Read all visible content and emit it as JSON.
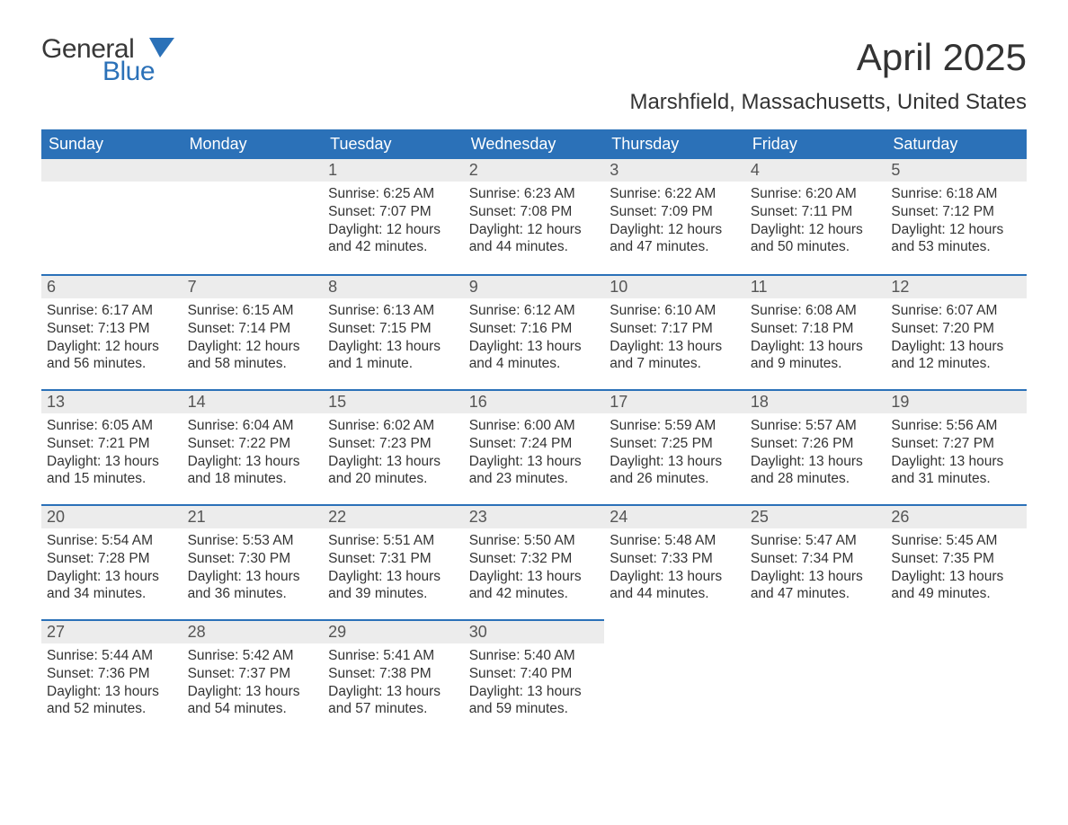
{
  "logo": {
    "top": "General",
    "bottom": "Blue",
    "flag_color": "#2b71b8"
  },
  "title": "April 2025",
  "subtitle": "Marshfield, Massachusetts, United States",
  "colors": {
    "header_bg": "#2b71b8",
    "header_text": "#ffffff",
    "daynum_bg": "#ececec",
    "row_divider": "#2b71b8",
    "body_text": "#333333",
    "page_bg": "#ffffff"
  },
  "weekdays": [
    "Sunday",
    "Monday",
    "Tuesday",
    "Wednesday",
    "Thursday",
    "Friday",
    "Saturday"
  ],
  "weeks": [
    [
      null,
      null,
      {
        "n": "1",
        "sunrise": "6:25 AM",
        "sunset": "7:07 PM",
        "daylight": "12 hours and 42 minutes."
      },
      {
        "n": "2",
        "sunrise": "6:23 AM",
        "sunset": "7:08 PM",
        "daylight": "12 hours and 44 minutes."
      },
      {
        "n": "3",
        "sunrise": "6:22 AM",
        "sunset": "7:09 PM",
        "daylight": "12 hours and 47 minutes."
      },
      {
        "n": "4",
        "sunrise": "6:20 AM",
        "sunset": "7:11 PM",
        "daylight": "12 hours and 50 minutes."
      },
      {
        "n": "5",
        "sunrise": "6:18 AM",
        "sunset": "7:12 PM",
        "daylight": "12 hours and 53 minutes."
      }
    ],
    [
      {
        "n": "6",
        "sunrise": "6:17 AM",
        "sunset": "7:13 PM",
        "daylight": "12 hours and 56 minutes."
      },
      {
        "n": "7",
        "sunrise": "6:15 AM",
        "sunset": "7:14 PM",
        "daylight": "12 hours and 58 minutes."
      },
      {
        "n": "8",
        "sunrise": "6:13 AM",
        "sunset": "7:15 PM",
        "daylight": "13 hours and 1 minute."
      },
      {
        "n": "9",
        "sunrise": "6:12 AM",
        "sunset": "7:16 PM",
        "daylight": "13 hours and 4 minutes."
      },
      {
        "n": "10",
        "sunrise": "6:10 AM",
        "sunset": "7:17 PM",
        "daylight": "13 hours and 7 minutes."
      },
      {
        "n": "11",
        "sunrise": "6:08 AM",
        "sunset": "7:18 PM",
        "daylight": "13 hours and 9 minutes."
      },
      {
        "n": "12",
        "sunrise": "6:07 AM",
        "sunset": "7:20 PM",
        "daylight": "13 hours and 12 minutes."
      }
    ],
    [
      {
        "n": "13",
        "sunrise": "6:05 AM",
        "sunset": "7:21 PM",
        "daylight": "13 hours and 15 minutes."
      },
      {
        "n": "14",
        "sunrise": "6:04 AM",
        "sunset": "7:22 PM",
        "daylight": "13 hours and 18 minutes."
      },
      {
        "n": "15",
        "sunrise": "6:02 AM",
        "sunset": "7:23 PM",
        "daylight": "13 hours and 20 minutes."
      },
      {
        "n": "16",
        "sunrise": "6:00 AM",
        "sunset": "7:24 PM",
        "daylight": "13 hours and 23 minutes."
      },
      {
        "n": "17",
        "sunrise": "5:59 AM",
        "sunset": "7:25 PM",
        "daylight": "13 hours and 26 minutes."
      },
      {
        "n": "18",
        "sunrise": "5:57 AM",
        "sunset": "7:26 PM",
        "daylight": "13 hours and 28 minutes."
      },
      {
        "n": "19",
        "sunrise": "5:56 AM",
        "sunset": "7:27 PM",
        "daylight": "13 hours and 31 minutes."
      }
    ],
    [
      {
        "n": "20",
        "sunrise": "5:54 AM",
        "sunset": "7:28 PM",
        "daylight": "13 hours and 34 minutes."
      },
      {
        "n": "21",
        "sunrise": "5:53 AM",
        "sunset": "7:30 PM",
        "daylight": "13 hours and 36 minutes."
      },
      {
        "n": "22",
        "sunrise": "5:51 AM",
        "sunset": "7:31 PM",
        "daylight": "13 hours and 39 minutes."
      },
      {
        "n": "23",
        "sunrise": "5:50 AM",
        "sunset": "7:32 PM",
        "daylight": "13 hours and 42 minutes."
      },
      {
        "n": "24",
        "sunrise": "5:48 AM",
        "sunset": "7:33 PM",
        "daylight": "13 hours and 44 minutes."
      },
      {
        "n": "25",
        "sunrise": "5:47 AM",
        "sunset": "7:34 PM",
        "daylight": "13 hours and 47 minutes."
      },
      {
        "n": "26",
        "sunrise": "5:45 AM",
        "sunset": "7:35 PM",
        "daylight": "13 hours and 49 minutes."
      }
    ],
    [
      {
        "n": "27",
        "sunrise": "5:44 AM",
        "sunset": "7:36 PM",
        "daylight": "13 hours and 52 minutes."
      },
      {
        "n": "28",
        "sunrise": "5:42 AM",
        "sunset": "7:37 PM",
        "daylight": "13 hours and 54 minutes."
      },
      {
        "n": "29",
        "sunrise": "5:41 AM",
        "sunset": "7:38 PM",
        "daylight": "13 hours and 57 minutes."
      },
      {
        "n": "30",
        "sunrise": "5:40 AM",
        "sunset": "7:40 PM",
        "daylight": "13 hours and 59 minutes."
      },
      null,
      null,
      null
    ]
  ],
  "labels": {
    "sunrise": "Sunrise:",
    "sunset": "Sunset:",
    "daylight": "Daylight:"
  }
}
